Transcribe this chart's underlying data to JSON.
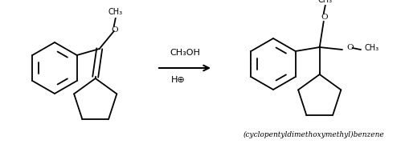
{
  "background_color": "#ffffff",
  "reagent_line1": "CH₃OH",
  "reagent_line2": "H⊕",
  "product_name": "(cyclopentyldimethoxymethyl)benzene",
  "figsize": [
    4.99,
    1.85
  ],
  "dpi": 100
}
